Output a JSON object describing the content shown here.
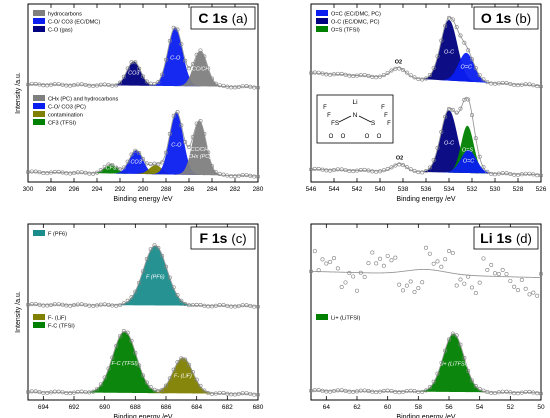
{
  "colors": {
    "gray": "#7f7f7f",
    "blue": "#0a1ef0",
    "navy": "#000080",
    "olive": "#808000",
    "teal": "#1a8c8c",
    "green": "#008000",
    "data_marker": "#808080",
    "envelope": "#999999"
  },
  "chart_data": [
    {
      "type": "area",
      "panel_title": "C 1s",
      "panel_letter": "(a)",
      "xlabel": "Binding energy /eV",
      "ylabel": "Intensity /a.u.",
      "xlim": [
        300,
        280
      ],
      "x_ticks": [
        300,
        298,
        296,
        294,
        292,
        290,
        288,
        286,
        284,
        282,
        280
      ],
      "x_reversed": true,
      "spectra": [
        {
          "position": "top",
          "legend": [
            {
              "label": "hydrocarbons",
              "color": "gray"
            },
            {
              "label": "C-O/ CO3 (EC/DMC)",
              "color": "blue"
            },
            {
              "label": "C-O (gas)",
              "color": "navy"
            }
          ],
          "background_start": 0.04,
          "background_end": 0.0,
          "peaks": [
            {
              "center": 290.8,
              "fwhm": 1.4,
              "height": 0.38,
              "color": "navy",
              "label": "CO3"
            },
            {
              "center": 287.2,
              "fwhm": 1.5,
              "height": 0.92,
              "color": "blue",
              "label": "C-O"
            },
            {
              "center": 285.0,
              "fwhm": 1.4,
              "height": 0.55,
              "color": "gray",
              "label": "CC/CH"
            }
          ]
        },
        {
          "position": "bottom",
          "legend": [
            {
              "label": "CHx (PC) and hydrocarbons",
              "color": "gray"
            },
            {
              "label": "C-O/ CO3 (PC)",
              "color": "blue"
            },
            {
              "label": "contamination",
              "color": "olive"
            },
            {
              "label": "CF3 (TFSI)",
              "color": "green"
            }
          ],
          "background_start": 0.06,
          "background_end": 0.0,
          "peaks": [
            {
              "center": 292.8,
              "fwhm": 1.3,
              "height": 0.14,
              "color": "green",
              "label": "CF3"
            },
            {
              "center": 290.6,
              "fwhm": 1.4,
              "height": 0.36,
              "color": "blue",
              "label": "CO3"
            },
            {
              "center": 288.9,
              "fwhm": 1.3,
              "height": 0.14,
              "color": "olive",
              "label": ""
            },
            {
              "center": 287.1,
              "fwhm": 1.4,
              "height": 0.95,
              "color": "blue",
              "label": "C-O"
            },
            {
              "center": 285.1,
              "fwhm": 1.4,
              "height": 0.82,
              "color": "gray",
              "label": "CC/CH\nCHx (PC)"
            }
          ]
        }
      ]
    },
    {
      "type": "area",
      "panel_title": "O 1s",
      "panel_letter": "(b)",
      "xlabel": "Binding energy /eV",
      "ylabel": "",
      "xlim": [
        546,
        526
      ],
      "x_ticks": [
        546,
        544,
        542,
        540,
        538,
        536,
        534,
        532,
        530,
        528,
        526
      ],
      "x_reversed": true,
      "structure_label": "Li+ N- TFSI",
      "spectra": [
        {
          "position": "top",
          "legend": [
            {
              "label": "O=C (EC/DMC, PC)",
              "color": "blue"
            },
            {
              "label": "O-C (EC/DMC, PC)",
              "color": "navy"
            },
            {
              "label": "O=S (TFSI)",
              "color": "green"
            }
          ],
          "background_start": 0.22,
          "background_end": 0.02,
          "peaks": [
            {
              "center": 538.4,
              "fwhm": 1.5,
              "height": 0.16,
              "color": "none",
              "label": "O2"
            },
            {
              "center": 534.0,
              "fwhm": 1.7,
              "height": 0.95,
              "color": "navy",
              "label": "O-C"
            },
            {
              "center": 532.5,
              "fwhm": 1.6,
              "height": 0.45,
              "color": "blue",
              "label": "O=C"
            }
          ]
        },
        {
          "position": "bottom",
          "legend": [],
          "background_start": 0.1,
          "background_end": 0.02,
          "peaks": [
            {
              "center": 538.3,
              "fwhm": 1.3,
              "height": 0.12,
              "color": "none",
              "label": "O2"
            },
            {
              "center": 534.0,
              "fwhm": 1.7,
              "height": 0.95,
              "color": "navy",
              "label": "O-C"
            },
            {
              "center": 532.4,
              "fwhm": 1.3,
              "height": 0.72,
              "color": "green",
              "label": "O=S"
            },
            {
              "center": 532.3,
              "fwhm": 1.6,
              "height": 0.35,
              "color": "blue",
              "label": "O=C"
            }
          ]
        }
      ]
    },
    {
      "type": "area",
      "panel_title": "F 1s",
      "panel_letter": "(c)",
      "xlabel": "Binding energy /eV",
      "ylabel": "Intensity /a.u.",
      "xlim": [
        695,
        680
      ],
      "x_ticks": [
        694,
        692,
        690,
        688,
        686,
        684,
        682,
        680
      ],
      "x_reversed": true,
      "spectra": [
        {
          "position": "top",
          "legend": [
            {
              "label": "F (PF6)",
              "color": "teal"
            }
          ],
          "background_start": 0.02,
          "background_end": 0.0,
          "peaks": [
            {
              "center": 686.7,
              "fwhm": 1.8,
              "height": 0.95,
              "color": "teal",
              "label": "F (PF6)"
            }
          ]
        },
        {
          "position": "bottom",
          "legend": [
            {
              "label": "F- (LiF)",
              "color": "olive"
            },
            {
              "label": "F-C (TFSI)",
              "color": "green"
            }
          ],
          "background_start": 0.03,
          "background_end": 0.0,
          "peaks": [
            {
              "center": 688.7,
              "fwhm": 1.8,
              "height": 0.95,
              "color": "green",
              "label": "F-C (TFSI)"
            },
            {
              "center": 684.9,
              "fwhm": 1.5,
              "height": 0.55,
              "color": "olive",
              "label": "F- (LiF)"
            }
          ]
        }
      ]
    },
    {
      "type": "area",
      "panel_title": "Li 1s",
      "panel_letter": "(d)",
      "xlabel": "Binding energy /eV",
      "ylabel": "",
      "xlim": [
        65,
        50
      ],
      "x_ticks": [
        64,
        62,
        60,
        58,
        56,
        54,
        52,
        50
      ],
      "x_reversed": true,
      "spectra": [
        {
          "position": "top",
          "legend": [],
          "background_start": 0.55,
          "background_end": 0.45,
          "noisy": true,
          "peaks": [
            {
              "center": 57.5,
              "fwhm": 3.0,
              "height": 0.08,
              "color": "none",
              "label": ""
            }
          ]
        },
        {
          "position": "bottom",
          "legend": [
            {
              "label": "Li+ (LiTFSI)",
              "color": "green"
            }
          ],
          "background_start": 0.05,
          "background_end": 0.02,
          "peaks": [
            {
              "center": 55.7,
              "fwhm": 1.6,
              "height": 0.9,
              "color": "green",
              "label": "Li+ (LiTFSI)"
            }
          ]
        }
      ]
    }
  ]
}
